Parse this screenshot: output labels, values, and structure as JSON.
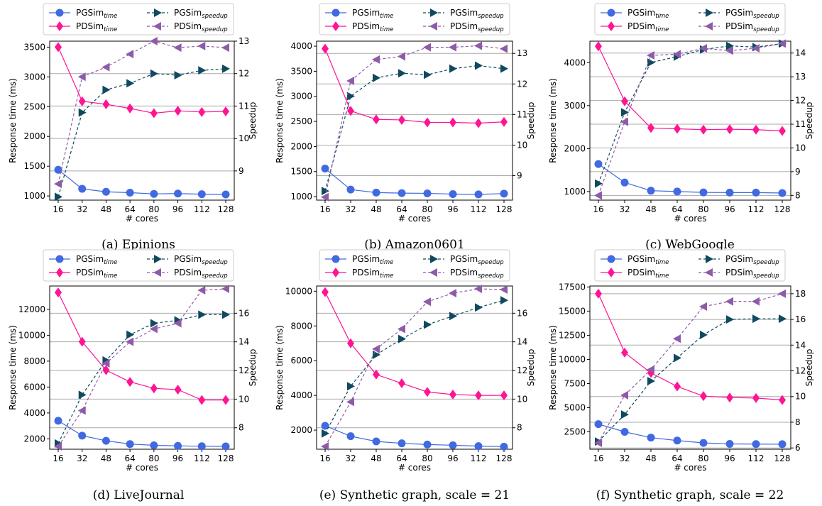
{
  "colors": {
    "pgsim_time": "#4169e1",
    "pdsim_time": "#ff1493",
    "pgsim_speedup": "#0f4a5e",
    "pdsim_speedup": "#8e5ba8",
    "grid": "#aaaaaa"
  },
  "legend": [
    {
      "key": "pgsim_time",
      "base": "PGSim",
      "sub": "time",
      "marker": "circle",
      "dash": false
    },
    {
      "key": "pdsim_time",
      "base": "PDSim",
      "sub": "time",
      "marker": "diamond",
      "dash": false
    },
    {
      "key": "pgsim_speedup",
      "base": "PGSim",
      "sub": "speedup",
      "marker": "triangle-right",
      "dash": true
    },
    {
      "key": "pdsim_speedup",
      "base": "PDSim",
      "sub": "speedup",
      "marker": "triangle-left",
      "dash": true
    }
  ],
  "chart_data": [
    {
      "type": "line",
      "caption": "(a) Epinions",
      "xlabel": "# cores",
      "ylabel": "Response time (ms)",
      "y2label": "Speedup",
      "x": [
        16,
        32,
        48,
        64,
        80,
        96,
        112,
        128
      ],
      "ylim": [
        930,
        3600
      ],
      "y2lim": [
        8.1,
        13.0
      ],
      "yticks": [
        1000,
        1500,
        2000,
        2500,
        3000,
        3500
      ],
      "y2ticks": [
        9,
        10,
        11,
        12,
        13
      ],
      "ytick_labels": [
        "1000",
        "1500",
        "2000",
        "2500",
        "3000",
        "3500"
      ],
      "y2tick_labels": [
        "9",
        "10",
        "11",
        "12",
        "13"
      ],
      "series": [
        {
          "name": "PGSim time",
          "key": "pgsim_time",
          "axis": "left",
          "values": [
            1440,
            1120,
            1070,
            1055,
            1035,
            1040,
            1030,
            1025
          ]
        },
        {
          "name": "PDSim time",
          "key": "pdsim_time",
          "axis": "left",
          "values": [
            3500,
            2590,
            2540,
            2470,
            2390,
            2430,
            2410,
            2420
          ]
        },
        {
          "name": "PGSim speedup",
          "key": "pgsim_speedup",
          "axis": "right",
          "values": [
            8.2,
            10.8,
            11.5,
            11.7,
            12.0,
            11.95,
            12.1,
            12.15
          ]
        },
        {
          "name": "PDSim speedup",
          "key": "pdsim_speedup",
          "axis": "right",
          "values": [
            8.6,
            11.9,
            12.2,
            12.6,
            13.0,
            12.8,
            12.85,
            12.8
          ]
        }
      ]
    },
    {
      "type": "line",
      "caption": "(b) Amazon0601",
      "xlabel": "# cores",
      "ylabel": "Response time (ms)",
      "y2label": "Speedup",
      "x": [
        16,
        32,
        48,
        64,
        80,
        96,
        112,
        128
      ],
      "ylim": [
        930,
        4100
      ],
      "y2lim": [
        8.2,
        13.4
      ],
      "yticks": [
        1000,
        1500,
        2000,
        2500,
        3000,
        3500,
        4000
      ],
      "y2ticks": [
        9,
        10,
        11,
        12,
        13
      ],
      "ytick_labels": [
        "1000",
        "1500",
        "2000",
        "2500",
        "3000",
        "3500",
        "4000"
      ],
      "y2tick_labels": [
        "9",
        "10",
        "11",
        "12",
        "13"
      ],
      "series": [
        {
          "name": "PGSim time",
          "key": "pgsim_time",
          "axis": "left",
          "values": [
            1560,
            1140,
            1080,
            1070,
            1065,
            1050,
            1045,
            1060
          ]
        },
        {
          "name": "PDSim time",
          "key": "pdsim_time",
          "axis": "left",
          "values": [
            3950,
            2710,
            2540,
            2530,
            2480,
            2480,
            2465,
            2490
          ]
        },
        {
          "name": "PGSim speedup",
          "key": "pgsim_speedup",
          "axis": "right",
          "values": [
            8.5,
            11.6,
            12.2,
            12.35,
            12.3,
            12.5,
            12.6,
            12.5
          ]
        },
        {
          "name": "PDSim speedup",
          "key": "pdsim_speedup",
          "axis": "right",
          "values": [
            8.3,
            12.1,
            12.8,
            12.9,
            13.2,
            13.2,
            13.25,
            13.15
          ]
        }
      ]
    },
    {
      "type": "line",
      "caption": "(c) WebGoogle",
      "xlabel": "# cores",
      "ylabel": "Response time (ms)",
      "y2label": "Speedup",
      "x": [
        16,
        32,
        48,
        64,
        80,
        96,
        112,
        128
      ],
      "ylim": [
        800,
        4500
      ],
      "y2lim": [
        7.8,
        14.5
      ],
      "yticks": [
        1000,
        2000,
        3000,
        4000
      ],
      "y2ticks": [
        8,
        9,
        10,
        11,
        12,
        13,
        14
      ],
      "ytick_labels": [
        "1000",
        "2000",
        "3000",
        "4000"
      ],
      "y2tick_labels": [
        "8",
        "9",
        "10",
        "11",
        "12",
        "13",
        "14"
      ],
      "series": [
        {
          "name": "PGSim time",
          "key": "pgsim_time",
          "axis": "left",
          "values": [
            1640,
            1210,
            1020,
            1000,
            980,
            975,
            975,
            965
          ]
        },
        {
          "name": "PDSim time",
          "key": "pdsim_time",
          "axis": "left",
          "values": [
            4380,
            3100,
            2480,
            2460,
            2440,
            2450,
            2440,
            2410
          ]
        },
        {
          "name": "PGSim speedup",
          "key": "pgsim_speedup",
          "axis": "right",
          "values": [
            8.5,
            11.5,
            13.6,
            13.85,
            14.15,
            14.3,
            14.25,
            14.4
          ]
        },
        {
          "name": "PDSim speedup",
          "key": "pdsim_speedup",
          "axis": "right",
          "values": [
            8.0,
            11.1,
            13.9,
            13.95,
            14.2,
            14.1,
            14.2,
            14.4
          ]
        }
      ]
    },
    {
      "type": "line",
      "caption": "(d) LiveJournal",
      "xlabel": "# cores",
      "ylabel": "Response time (ms)",
      "y2label": "Speedup",
      "x": [
        16,
        32,
        48,
        64,
        80,
        96,
        112,
        128
      ],
      "ylim": [
        1200,
        13800
      ],
      "y2lim": [
        6.5,
        17.9
      ],
      "yticks": [
        2000,
        4000,
        6000,
        8000,
        10000,
        12000
      ],
      "y2ticks": [
        8,
        10,
        12,
        14,
        16
      ],
      "ytick_labels": [
        "2000",
        "4000",
        "6000",
        "8000",
        "10000",
        "12000"
      ],
      "y2tick_labels": [
        "8",
        "10",
        "12",
        "14",
        "16"
      ],
      "series": [
        {
          "name": "PGSim time",
          "key": "pgsim_time",
          "axis": "left",
          "values": [
            3400,
            2250,
            1850,
            1600,
            1500,
            1460,
            1430,
            1420
          ]
        },
        {
          "name": "PDSim time",
          "key": "pdsim_time",
          "axis": "left",
          "values": [
            13300,
            9500,
            7300,
            6400,
            5900,
            5800,
            5000,
            5000
          ]
        },
        {
          "name": "PGSim speedup",
          "key": "pgsim_speedup",
          "axis": "right",
          "values": [
            6.9,
            10.3,
            12.7,
            14.5,
            15.3,
            15.5,
            15.9,
            15.9
          ]
        },
        {
          "name": "PDSim speedup",
          "key": "pdsim_speedup",
          "axis": "right",
          "values": [
            6.7,
            9.2,
            12.5,
            14.0,
            14.9,
            15.3,
            17.6,
            17.7
          ]
        }
      ]
    },
    {
      "type": "line",
      "caption": "(e) Synthetic graph, scale = 21",
      "xlabel": "# cores",
      "ylabel": "Response time (ms)",
      "y2label": "Speedup",
      "x": [
        16,
        32,
        48,
        64,
        80,
        96,
        112,
        128
      ],
      "ylim": [
        900,
        10300
      ],
      "y2lim": [
        6.5,
        17.9
      ],
      "yticks": [
        2000,
        4000,
        6000,
        8000,
        10000
      ],
      "y2ticks": [
        8,
        10,
        12,
        14,
        16
      ],
      "ytick_labels": [
        "2000",
        "4000",
        "6000",
        "8000",
        "10000"
      ],
      "y2tick_labels": [
        "8",
        "10",
        "12",
        "14",
        "16"
      ],
      "series": [
        {
          "name": "PGSim time",
          "key": "pgsim_time",
          "axis": "left",
          "values": [
            2250,
            1650,
            1350,
            1240,
            1170,
            1130,
            1080,
            1050
          ]
        },
        {
          "name": "PDSim time",
          "key": "pdsim_time",
          "axis": "left",
          "values": [
            9950,
            7000,
            5200,
            4700,
            4200,
            4050,
            4000,
            4000
          ]
        },
        {
          "name": "PGSim speedup",
          "key": "pgsim_speedup",
          "axis": "right",
          "values": [
            7.6,
            10.9,
            13.1,
            14.2,
            15.2,
            15.8,
            16.4,
            16.9
          ]
        },
        {
          "name": "PDSim speedup",
          "key": "pdsim_speedup",
          "axis": "right",
          "values": [
            6.7,
            9.8,
            13.5,
            14.9,
            16.8,
            17.4,
            17.7,
            17.65
          ]
        }
      ]
    },
    {
      "type": "line",
      "caption": "(f) Synthetic graph, scale = 22",
      "xlabel": "# cores",
      "ylabel": "Response time (ms)",
      "y2label": "Speedup",
      "x": [
        16,
        32,
        48,
        64,
        80,
        96,
        112,
        128
      ],
      "ylim": [
        700,
        17600
      ],
      "y2lim": [
        5.9,
        18.6
      ],
      "yticks": [
        2500,
        5000,
        7500,
        10000,
        12500,
        15000,
        17500
      ],
      "y2ticks": [
        6,
        8,
        10,
        12,
        14,
        16,
        18
      ],
      "ytick_labels": [
        "2500",
        "5000",
        "7500",
        "10000",
        "12500",
        "15000",
        "17500"
      ],
      "y2tick_labels": [
        "6",
        "8",
        "10",
        "12",
        "14",
        "16",
        "18"
      ],
      "series": [
        {
          "name": "PGSim time",
          "key": "pgsim_time",
          "axis": "left",
          "values": [
            3300,
            2500,
            1900,
            1600,
            1350,
            1250,
            1230,
            1220
          ]
        },
        {
          "name": "PDSim time",
          "key": "pdsim_time",
          "axis": "left",
          "values": [
            16800,
            10700,
            8600,
            7200,
            6200,
            6050,
            6000,
            5800
          ]
        },
        {
          "name": "PGSim speedup",
          "key": "pgsim_speedup",
          "axis": "right",
          "values": [
            6.5,
            8.6,
            11.2,
            13.0,
            14.8,
            16.0,
            16.05,
            16.05
          ]
        },
        {
          "name": "PDSim speedup",
          "key": "pdsim_speedup",
          "axis": "right",
          "values": [
            6.4,
            10.1,
            12.1,
            14.5,
            17.0,
            17.4,
            17.4,
            18.0
          ]
        }
      ]
    }
  ]
}
